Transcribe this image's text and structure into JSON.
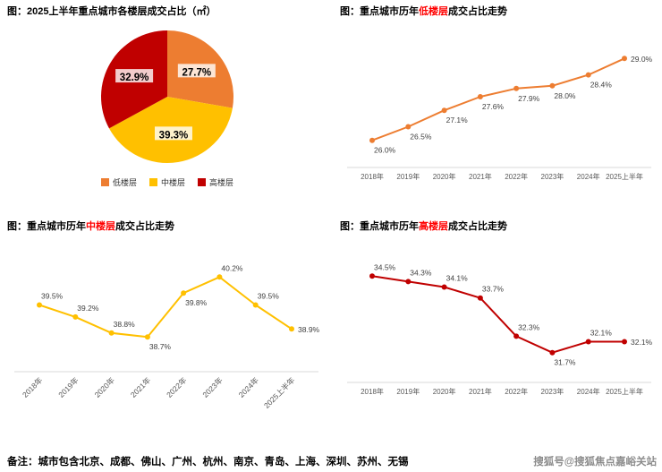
{
  "page": {
    "background": "#ffffff",
    "note": "备注：城市包含北京、成都、佛山、广州、杭州、南京、青岛、上海、深圳、苏州、无锡",
    "watermark": "搜狐号@搜狐焦点嘉峪关站"
  },
  "colors": {
    "low_floor": "#ED7D31",
    "mid_floor": "#FFC000",
    "high_floor": "#C00000",
    "axis": "#D9D9D9",
    "data_label": "#3f3f3f",
    "tick_label": "#595959",
    "title_keyword": "#FF0000"
  },
  "chart_data": [
    {
      "id": "pie_floor_share_2025H1",
      "type": "pie",
      "title": "图：2025上半年重点城市各楼层成交占比（㎡）",
      "unit": "%",
      "direction": "clockwise",
      "start_angle_deg": 0,
      "legend_position": "bottom",
      "slices": [
        {
          "label": "低楼层",
          "value": 27.7,
          "display": "27.7%",
          "color": "#ED7D31"
        },
        {
          "label": "中楼层",
          "value": 39.3,
          "display": "39.3%",
          "color": "#FFC000"
        },
        {
          "label": "高楼层",
          "value": 32.9,
          "display": "32.9%",
          "color": "#C00000"
        }
      ]
    },
    {
      "id": "line_low_floor_trend",
      "type": "line",
      "title_prefix": "图：重点城市历年",
      "title_keyword": "低楼层",
      "title_suffix": "成交占比走势",
      "color": "#ED7D31",
      "grid": false,
      "x_label_rotate": false,
      "ylim": [
        25.4,
        29.6
      ],
      "categories": [
        "2018年",
        "2019年",
        "2020年",
        "2021年",
        "2022年",
        "2023年",
        "2024年",
        "2025上半年"
      ],
      "values": [
        26.0,
        26.5,
        27.1,
        27.6,
        27.9,
        28.0,
        28.4,
        29.0
      ],
      "labels": [
        "26.0%",
        "26.5%",
        "27.1%",
        "27.6%",
        "27.9%",
        "28.0%",
        "28.4%",
        "29.0%"
      ]
    },
    {
      "id": "line_mid_floor_trend",
      "type": "line",
      "title_prefix": "图：重点城市历年",
      "title_keyword": "中楼层",
      "title_suffix": "成交占比走势",
      "color": "#FFC000",
      "grid": false,
      "x_label_rotate": true,
      "ylim": [
        38.1,
        40.7
      ],
      "categories": [
        "2018年",
        "2019年",
        "2020年",
        "2021年",
        "2022年",
        "2023年",
        "2024年",
        "2025上半年"
      ],
      "values": [
        39.5,
        39.2,
        38.8,
        38.7,
        39.8,
        40.2,
        39.5,
        38.9
      ],
      "labels": [
        "39.5%",
        "39.2%",
        "38.8%",
        "38.7%",
        "39.8%",
        "40.2%",
        "39.5%",
        "38.9%"
      ]
    },
    {
      "id": "line_high_floor_trend",
      "type": "line",
      "title_prefix": "图：重点城市历年",
      "title_keyword": "高楼层",
      "title_suffix": "成交占比走势",
      "color": "#C00000",
      "grid": false,
      "x_label_rotate": false,
      "ylim": [
        31.0,
        35.2
      ],
      "categories": [
        "2018年",
        "2019年",
        "2020年",
        "2021年",
        "2022年",
        "2023年",
        "2024年",
        "2025上半年"
      ],
      "values": [
        34.5,
        34.3,
        34.1,
        33.7,
        32.3,
        31.7,
        32.1,
        32.1
      ],
      "labels": [
        "34.5%",
        "34.3%",
        "34.1%",
        "33.7%",
        "32.3%",
        "31.7%",
        "32.1%",
        "32.1%"
      ]
    }
  ]
}
